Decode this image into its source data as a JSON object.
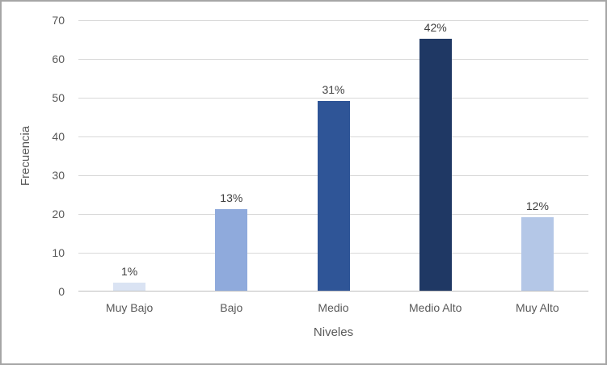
{
  "chart_data": {
    "type": "bar",
    "title": "",
    "xlabel": "Niveles",
    "ylabel": "Frecuencia",
    "categories": [
      "Muy Bajo",
      "Bajo",
      "Medio",
      "Medio Alto",
      "Muy Alto"
    ],
    "values": [
      2,
      21,
      49,
      65,
      19
    ],
    "bar_labels": [
      "1%",
      "13%",
      "31%",
      "42%",
      "12%"
    ],
    "bar_colors": [
      "#dae3f3",
      "#8faadc",
      "#2f5597",
      "#1f3864",
      "#b4c7e7"
    ],
    "ylim": [
      0,
      70
    ],
    "yticks": [
      0,
      10,
      20,
      30,
      40,
      50,
      60,
      70
    ],
    "grid": "horizontal",
    "legend": "none"
  },
  "styles": {
    "frame_border": "#a6a6a6",
    "gridline": "#d9d9d9",
    "axis_line": "#bfbfbf",
    "tick_text": "#595959",
    "data_label_text": "#404040",
    "background": "#ffffff"
  }
}
